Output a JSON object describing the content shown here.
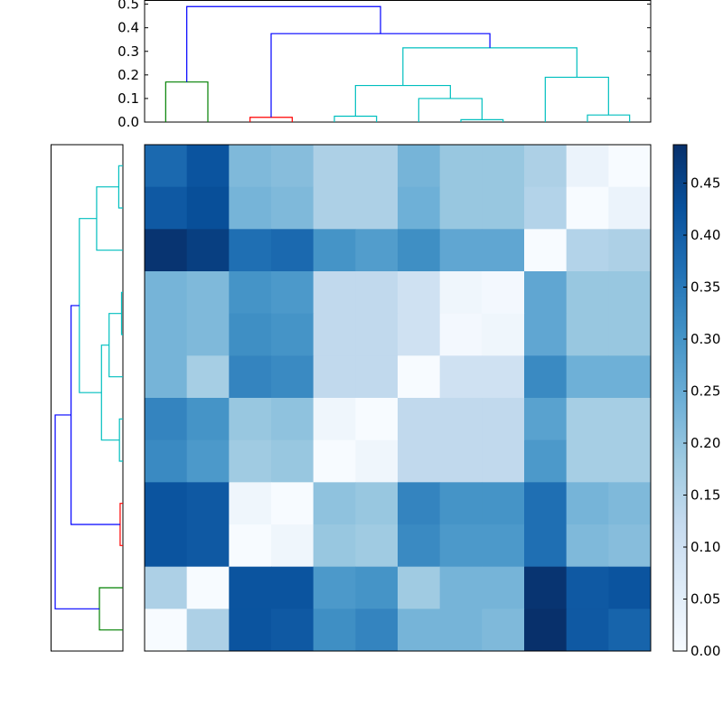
{
  "chart_data": {
    "type": "heatmap",
    "title": "",
    "description_kind": "clustered distance matrix with dendrograms",
    "leaf_order_columns": [
      0,
      1,
      2,
      3,
      4,
      5,
      6,
      7,
      8,
      9,
      10,
      11
    ],
    "matrix_rows_top_to_bottom": [
      [
        0.38,
        0.42,
        0.22,
        0.21,
        0.16,
        0.16,
        0.23,
        0.19,
        0.19,
        0.16,
        0.03,
        0.0
      ],
      [
        0.41,
        0.43,
        0.23,
        0.22,
        0.16,
        0.16,
        0.24,
        0.19,
        0.19,
        0.15,
        0.0,
        0.03
      ],
      [
        0.48,
        0.46,
        0.37,
        0.38,
        0.3,
        0.28,
        0.31,
        0.26,
        0.26,
        0.0,
        0.15,
        0.16
      ],
      [
        0.23,
        0.22,
        0.3,
        0.29,
        0.13,
        0.13,
        0.1,
        0.02,
        0.01,
        0.26,
        0.19,
        0.19
      ],
      [
        0.23,
        0.22,
        0.31,
        0.3,
        0.13,
        0.13,
        0.1,
        0.01,
        0.02,
        0.26,
        0.19,
        0.19
      ],
      [
        0.23,
        0.17,
        0.33,
        0.32,
        0.13,
        0.13,
        0.0,
        0.1,
        0.1,
        0.32,
        0.24,
        0.24
      ],
      [
        0.33,
        0.3,
        0.19,
        0.2,
        0.02,
        0.0,
        0.13,
        0.13,
        0.13,
        0.27,
        0.17,
        0.17
      ],
      [
        0.32,
        0.29,
        0.18,
        0.19,
        0.0,
        0.02,
        0.13,
        0.13,
        0.13,
        0.29,
        0.17,
        0.17
      ],
      [
        0.42,
        0.41,
        0.02,
        0.0,
        0.2,
        0.19,
        0.33,
        0.3,
        0.3,
        0.37,
        0.23,
        0.22
      ],
      [
        0.42,
        0.41,
        0.0,
        0.02,
        0.19,
        0.18,
        0.32,
        0.29,
        0.29,
        0.37,
        0.22,
        0.21
      ],
      [
        0.16,
        0.0,
        0.42,
        0.42,
        0.29,
        0.3,
        0.18,
        0.23,
        0.23,
        0.48,
        0.41,
        0.42
      ],
      [
        0.0,
        0.16,
        0.42,
        0.41,
        0.31,
        0.33,
        0.23,
        0.23,
        0.22,
        0.49,
        0.41,
        0.39
      ]
    ],
    "colormap": "Blues",
    "vlim": [
      0,
      0.487
    ],
    "dendrogram": {
      "ylim": [
        0,
        0.51
      ],
      "yticks": [
        "0.0",
        "0.1",
        "0.2",
        "0.3",
        "0.4",
        "0.5"
      ],
      "links": [
        {
          "a": [
            0
          ],
          "b": [
            1
          ],
          "height": 0.17,
          "color": "#008000"
        },
        {
          "a": [
            2
          ],
          "b": [
            3
          ],
          "height": 0.02,
          "color": "#ff0000"
        },
        {
          "a": [
            4
          ],
          "b": [
            5
          ],
          "height": 0.025,
          "color": "#00bfbf"
        },
        {
          "a": [
            7
          ],
          "b": [
            8
          ],
          "height": 0.01,
          "color": "#00bfbf"
        },
        {
          "a": [
            6
          ],
          "b": [
            7,
            8
          ],
          "height": 0.1,
          "color": "#00bfbf"
        },
        {
          "a": [
            4,
            5
          ],
          "b": [
            6,
            7,
            8
          ],
          "height": 0.155,
          "color": "#00bfbf"
        },
        {
          "a": [
            10
          ],
          "b": [
            11
          ],
          "height": 0.03,
          "color": "#00bfbf"
        },
        {
          "a": [
            9
          ],
          "b": [
            10,
            11
          ],
          "height": 0.19,
          "color": "#00bfbf"
        },
        {
          "a": [
            4,
            5,
            6,
            7,
            8
          ],
          "b": [
            9,
            10,
            11
          ],
          "height": 0.315,
          "color": "#00bfbf"
        },
        {
          "a": [
            2,
            3
          ],
          "b": [
            4,
            5,
            6,
            7,
            8,
            9,
            10,
            11
          ],
          "height": 0.375,
          "color": "#0000ff"
        },
        {
          "a": [
            0,
            1
          ],
          "b": [
            2,
            3,
            4,
            5,
            6,
            7,
            8,
            9,
            10,
            11
          ],
          "height": 0.49,
          "color": "#0000ff"
        }
      ]
    },
    "colorbar": {
      "ticks": [
        0.0,
        0.05,
        0.1,
        0.15,
        0.2,
        0.25,
        0.3,
        0.35,
        0.4,
        0.45
      ],
      "tick_labels": [
        "0.00",
        "0.05",
        "0.10",
        "0.15",
        "0.20",
        "0.25",
        "0.30",
        "0.35",
        "0.40",
        "0.45"
      ]
    }
  }
}
